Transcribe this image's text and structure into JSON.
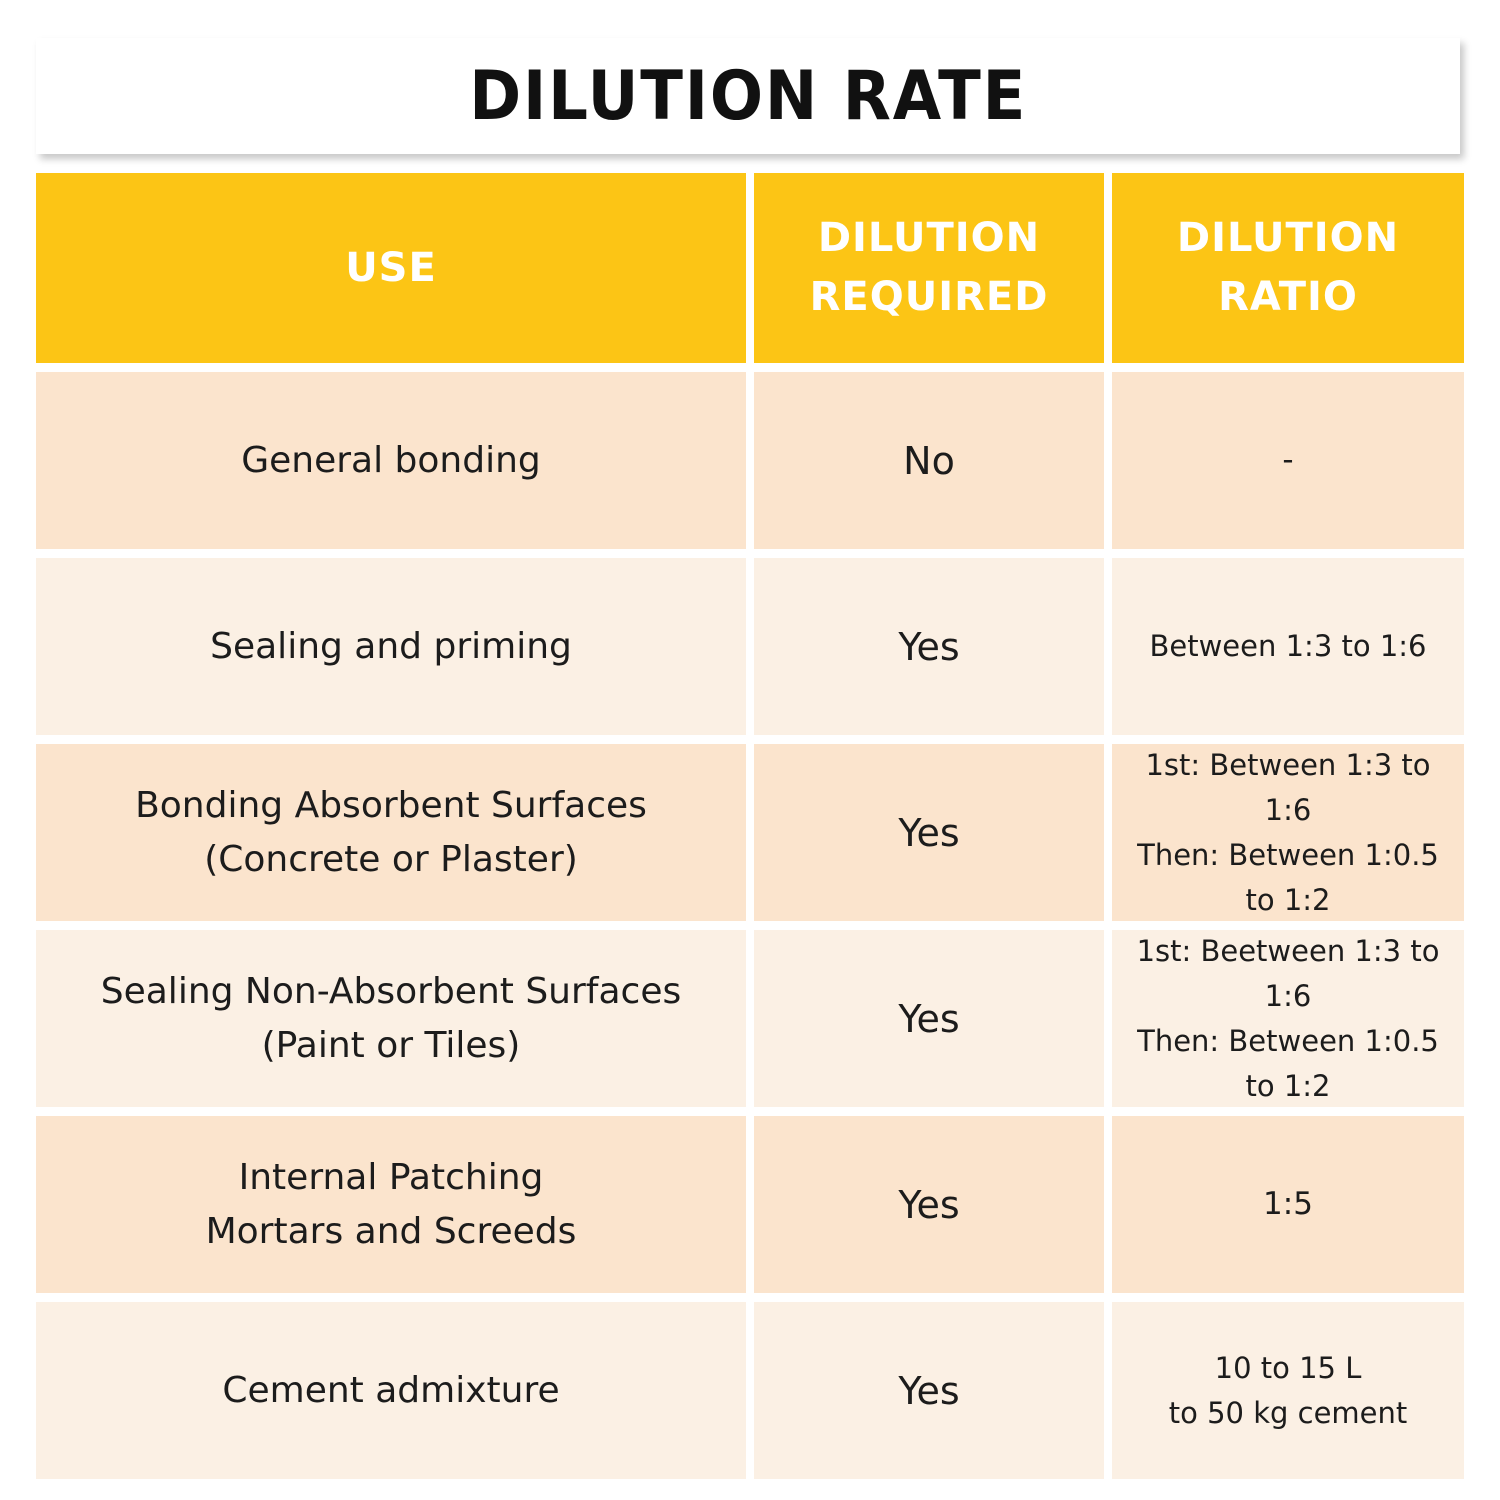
{
  "title": "DILUTION RATE",
  "table": {
    "headers": {
      "use": "USE",
      "required": "DILUTION\nREQUIRED",
      "ratio": "DILUTION\nRATIO"
    },
    "rows": [
      {
        "use": "General bonding",
        "required": "No",
        "ratio": "-"
      },
      {
        "use": "Sealing and priming",
        "required": "Yes",
        "ratio": "Between 1:3 to 1:6"
      },
      {
        "use": "Bonding Absorbent Surfaces\n(Concrete or Plaster)",
        "required": "Yes",
        "ratio": "1st: Between 1:3 to 1:6\nThen: Between 1:0.5\nto 1:2"
      },
      {
        "use": "Sealing Non-Absorbent Surfaces\n(Paint or Tiles)",
        "required": "Yes",
        "ratio": "1st: Beetween 1:3 to\n1:6\nThen: Between 1:0.5\nto 1:2"
      },
      {
        "use": "Internal Patching\nMortars and Screeds",
        "required": "Yes",
        "ratio": "1:5"
      },
      {
        "use": "Cement admixture",
        "required": "Yes",
        "ratio": "10 to 15 L\nto 50 kg cement"
      }
    ]
  },
  "colors": {
    "header_bg": "#fcc515",
    "row_dark": "#fbe4cd",
    "row_light": "#fbf0e4",
    "text": "#1c1c1c"
  }
}
